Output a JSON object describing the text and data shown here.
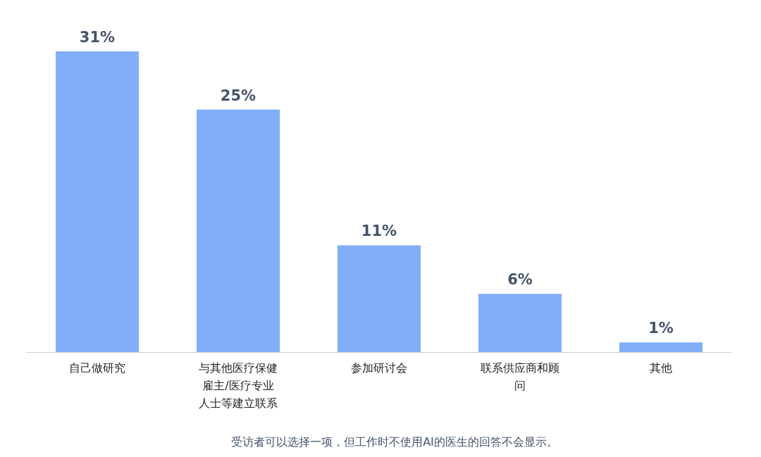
{
  "chart_data": {
    "type": "bar",
    "categories": [
      "自己做研究",
      "与其他医疗保健雇主/医疗专业人士等建立联系",
      "参加研讨会",
      "联系供应商和顾问",
      "其他"
    ],
    "values": [
      31,
      25,
      11,
      6,
      1
    ],
    "value_labels": [
      "31%",
      "25%",
      "11%",
      "6%",
      "1%"
    ],
    "color": "#80aef9",
    "annotations": [
      "受访者可以选择一项，但工作时不使用AI的医生的回答不会显示。"
    ]
  }
}
